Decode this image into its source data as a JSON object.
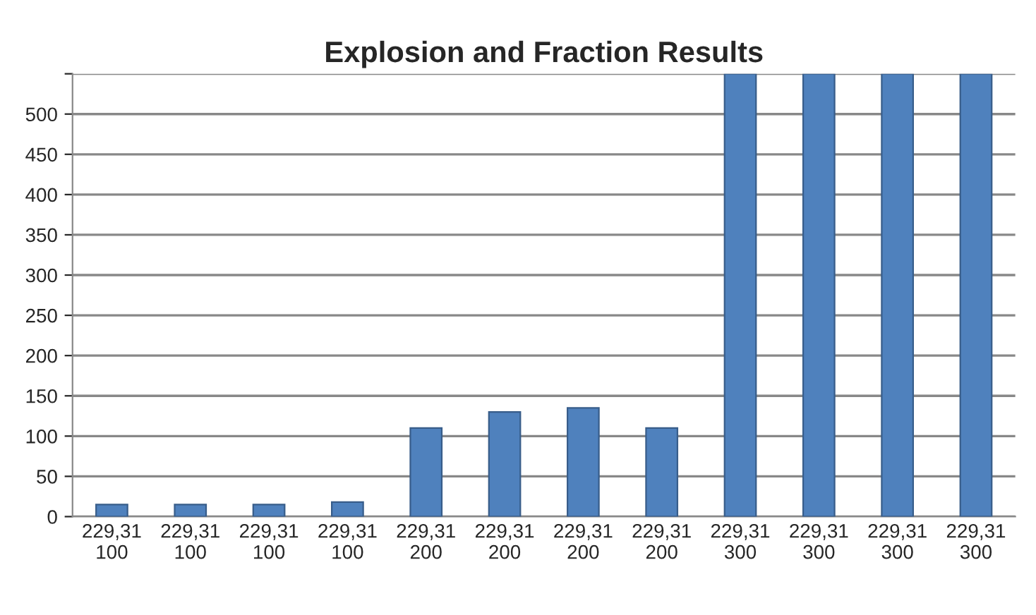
{
  "chart_data": {
    "type": "bar",
    "title": "Explosion and Fraction Results",
    "categories": [
      "229,31\n100",
      "229,31\n100",
      "229,31\n100",
      "229,31\n100",
      "229,31\n200",
      "229,31\n200",
      "229,31\n200",
      "229,31\n200",
      "229,31\n300",
      "229,31\n300",
      "229,31\n300",
      "229,31\n300"
    ],
    "values": [
      15,
      15,
      15,
      18,
      110,
      130,
      135,
      110,
      550,
      550,
      550,
      550
    ],
    "color": "#4f81bd",
    "ylim": [
      0,
      550
    ],
    "yticks": [
      0,
      50,
      100,
      150,
      200,
      250,
      300,
      350,
      400,
      450,
      500,
      {
        "value": 550,
        "label": null
      }
    ],
    "grid": "y",
    "legend": false
  }
}
